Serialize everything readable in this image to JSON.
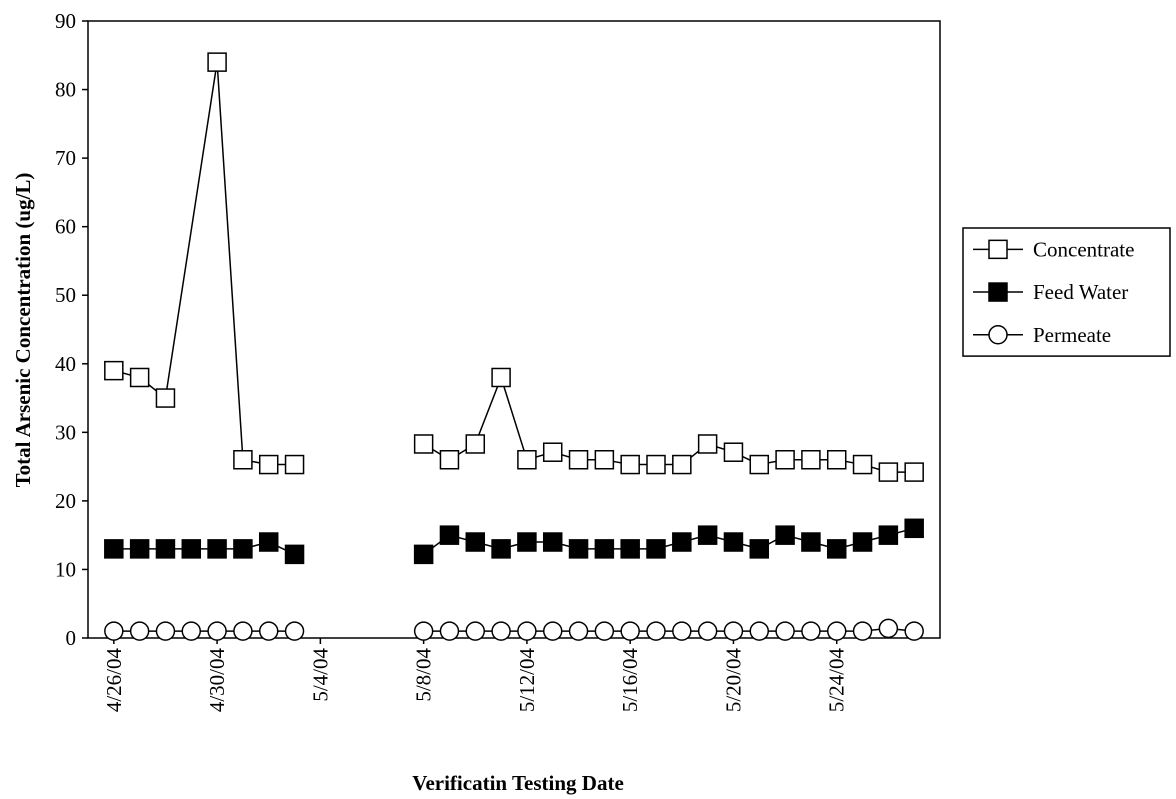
{
  "chart_data": {
    "type": "line",
    "ylabel": "Total Arsenic Concentration (ug/L)",
    "xlabel": "Verificatin Testing Date",
    "x": [
      "2004-04-26",
      "2004-04-27",
      "2004-04-28",
      "2004-04-29",
      "2004-04-30",
      "2004-05-01",
      "2004-05-02",
      "2004-05-03",
      "2004-05-04",
      "2004-05-05",
      "2004-05-06",
      "2004-05-07",
      "2004-05-08",
      "2004-05-09",
      "2004-05-10",
      "2004-05-11",
      "2004-05-12",
      "2004-05-13",
      "2004-05-14",
      "2004-05-15",
      "2004-05-16",
      "2004-05-17",
      "2004-05-18",
      "2004-05-19",
      "2004-05-20",
      "2004-05-21",
      "2004-05-22",
      "2004-05-23",
      "2004-05-24",
      "2004-05-25",
      "2004-05-26",
      "2004-05-27"
    ],
    "series": [
      {
        "name": "Concentrate",
        "color": "#000000",
        "marker": "square",
        "marker_fill": "#ffffff",
        "x": [
          "2004-04-26",
          "2004-04-27",
          "2004-04-28",
          "2004-04-30",
          "2004-05-01",
          "2004-05-02",
          "2004-05-03",
          "2004-05-04",
          "2004-05-05",
          "2004-05-06",
          "2004-05-07",
          "2004-05-08",
          "2004-05-09",
          "2004-05-10",
          "2004-05-11",
          "2004-05-12",
          "2004-05-13",
          "2004-05-14",
          "2004-05-15",
          "2004-05-16",
          "2004-05-17",
          "2004-05-18",
          "2004-05-19",
          "2004-05-20",
          "2004-05-21",
          "2004-05-22",
          "2004-05-23",
          "2004-05-24",
          "2004-05-25",
          "2004-05-26",
          "2004-05-27"
        ],
        "values": [
          39,
          38,
          35,
          84,
          26,
          25.3,
          25.3,
          null,
          null,
          null,
          null,
          28.3,
          26,
          28.3,
          38,
          26,
          27.1,
          26,
          26,
          25.3,
          25.3,
          25.3,
          28.3,
          27.1,
          25.3,
          26,
          26,
          26,
          25.3,
          24.2,
          24.2
        ]
      },
      {
        "name": "Feed Water",
        "color": "#000000",
        "marker": "square",
        "marker_fill": "#000000",
        "values": [
          13,
          13,
          13,
          13,
          13,
          13,
          14,
          12.2,
          null,
          null,
          null,
          null,
          12.2,
          15,
          14,
          13,
          14,
          14,
          13,
          13,
          13,
          13,
          14,
          15,
          14,
          13,
          15,
          14,
          13,
          14,
          15,
          16
        ]
      },
      {
        "name": "Permeate",
        "color": "#000000",
        "marker": "circle",
        "marker_fill": "#ffffff",
        "values": [
          1,
          1,
          1,
          1,
          1,
          1,
          1,
          1,
          null,
          null,
          null,
          null,
          1,
          1,
          1,
          1,
          1,
          1,
          1,
          1,
          1,
          1,
          1,
          1,
          1,
          1,
          1,
          1,
          1,
          1,
          1.4,
          1
        ]
      }
    ],
    "xlim": [
      "2004-04-25",
      "2004-05-28"
    ],
    "xticks": [
      {
        "value": "2004-04-26",
        "label": "4/26/04"
      },
      {
        "value": "2004-04-30",
        "label": "4/30/04"
      },
      {
        "value": "2004-05-04",
        "label": "5/4/04"
      },
      {
        "value": "2004-05-08",
        "label": "5/8/04"
      },
      {
        "value": "2004-05-12",
        "label": "5/12/04"
      },
      {
        "value": "2004-05-16",
        "label": "5/16/04"
      },
      {
        "value": "2004-05-20",
        "label": "5/20/04"
      },
      {
        "value": "2004-05-24",
        "label": "5/24/04"
      }
    ],
    "ylim": [
      0,
      90
    ],
    "yticks": [
      0,
      10,
      20,
      30,
      40,
      50,
      60,
      70,
      80,
      90
    ],
    "legend": "right"
  }
}
